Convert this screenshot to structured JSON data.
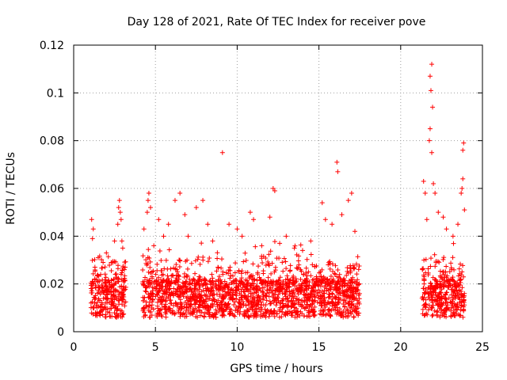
{
  "chart_data": {
    "type": "scatter",
    "title": "Day 128 of 2021, Rate Of TEC Index for receiver pove",
    "xlabel": "GPS time / hours",
    "ylabel": "ROTI / TECUs",
    "xlim": [
      0,
      25
    ],
    "ylim": [
      0,
      0.12
    ],
    "x_ticks": [
      0,
      5,
      10,
      15,
      20,
      25
    ],
    "y_ticks": [
      0,
      0.02,
      0.04,
      0.06,
      0.08,
      0.1,
      0.12
    ],
    "x_tick_labels": [
      "0",
      "5",
      "10",
      "15",
      "20",
      "25"
    ],
    "y_tick_labels": [
      "0",
      "0.02",
      "0.04",
      "0.06",
      "0.08",
      "0.1",
      "0.12"
    ],
    "grid": true,
    "marker": "plus",
    "series_color": "#ff0000",
    "data_segments": [
      {
        "x_start": 1.05,
        "x_end": 3.2
      },
      {
        "x_start": 4.2,
        "x_end": 17.5
      },
      {
        "x_start": 21.3,
        "x_end": 23.9
      }
    ],
    "points": [
      [
        1.1,
        0.047
      ],
      [
        1.2,
        0.043
      ],
      [
        1.15,
        0.039
      ],
      [
        1.3,
        0.027
      ],
      [
        1.5,
        0.031
      ],
      [
        1.8,
        0.029
      ],
      [
        2.0,
        0.033
      ],
      [
        2.3,
        0.029
      ],
      [
        2.5,
        0.038
      ],
      [
        2.7,
        0.045
      ],
      [
        2.75,
        0.052
      ],
      [
        2.8,
        0.055
      ],
      [
        2.85,
        0.05
      ],
      [
        2.9,
        0.047
      ],
      [
        2.95,
        0.038
      ],
      [
        3.0,
        0.035
      ],
      [
        3.1,
        0.026
      ],
      [
        4.3,
        0.043
      ],
      [
        4.5,
        0.05
      ],
      [
        4.55,
        0.055
      ],
      [
        4.6,
        0.058
      ],
      [
        4.7,
        0.052
      ],
      [
        4.9,
        0.036
      ],
      [
        5.2,
        0.047
      ],
      [
        5.5,
        0.04
      ],
      [
        5.8,
        0.045
      ],
      [
        6.2,
        0.055
      ],
      [
        6.5,
        0.058
      ],
      [
        6.8,
        0.049
      ],
      [
        7.0,
        0.04
      ],
      [
        7.5,
        0.052
      ],
      [
        7.9,
        0.055
      ],
      [
        8.2,
        0.045
      ],
      [
        8.5,
        0.038
      ],
      [
        9.1,
        0.075
      ],
      [
        9.5,
        0.045
      ],
      [
        10.0,
        0.043
      ],
      [
        10.3,
        0.04
      ],
      [
        10.8,
        0.05
      ],
      [
        11.0,
        0.047
      ],
      [
        11.5,
        0.036
      ],
      [
        12.0,
        0.048
      ],
      [
        12.2,
        0.06
      ],
      [
        12.3,
        0.059
      ],
      [
        12.6,
        0.037
      ],
      [
        13.0,
        0.04
      ],
      [
        13.5,
        0.035
      ],
      [
        14.0,
        0.034
      ],
      [
        14.5,
        0.038
      ],
      [
        15.2,
        0.054
      ],
      [
        15.4,
        0.047
      ],
      [
        15.8,
        0.045
      ],
      [
        16.1,
        0.071
      ],
      [
        16.15,
        0.067
      ],
      [
        16.4,
        0.049
      ],
      [
        16.8,
        0.055
      ],
      [
        17.0,
        0.058
      ],
      [
        17.2,
        0.042
      ],
      [
        21.4,
        0.063
      ],
      [
        21.5,
        0.058
      ],
      [
        21.6,
        0.047
      ],
      [
        21.8,
        0.107
      ],
      [
        21.85,
        0.101
      ],
      [
        21.9,
        0.112
      ],
      [
        21.95,
        0.094
      ],
      [
        21.8,
        0.085
      ],
      [
        21.75,
        0.08
      ],
      [
        21.9,
        0.075
      ],
      [
        22.0,
        0.062
      ],
      [
        22.1,
        0.058
      ],
      [
        22.3,
        0.05
      ],
      [
        22.6,
        0.048
      ],
      [
        22.8,
        0.043
      ],
      [
        23.2,
        0.04
      ],
      [
        23.5,
        0.045
      ],
      [
        23.7,
        0.058
      ],
      [
        23.8,
        0.076
      ],
      [
        23.85,
        0.079
      ],
      [
        23.8,
        0.064
      ],
      [
        23.9,
        0.051
      ],
      [
        23.75,
        0.06
      ]
    ]
  }
}
